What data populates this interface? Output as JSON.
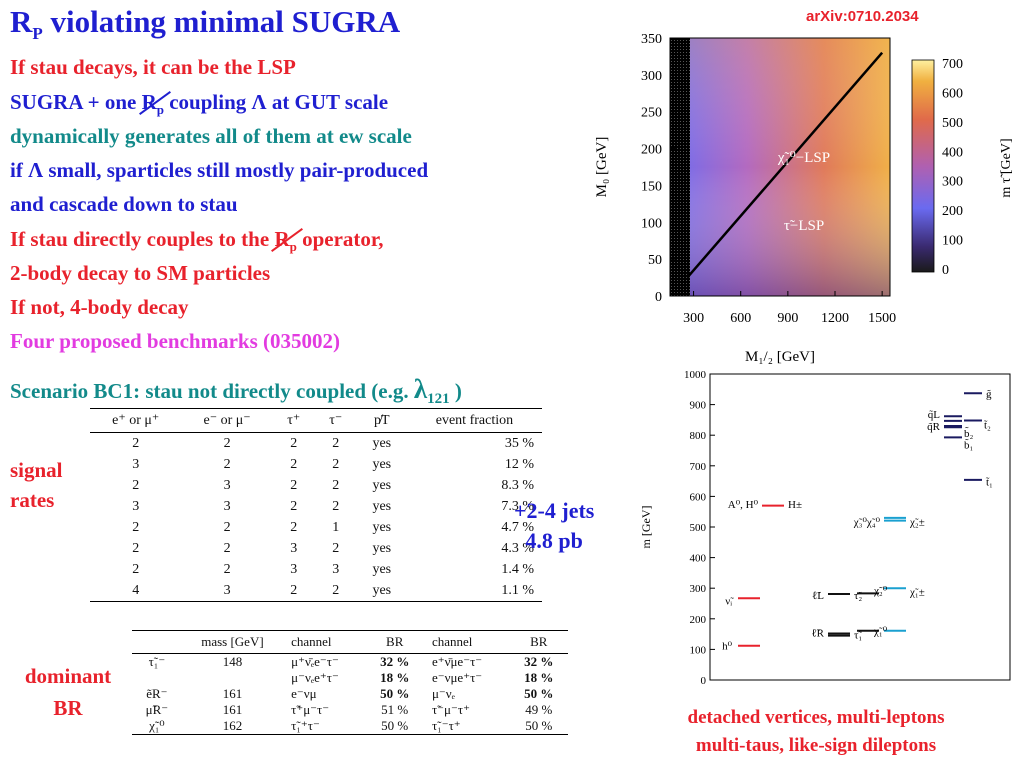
{
  "slide": {
    "title_main": "R",
    "title_sub": "P",
    "title_rest": " violating minimal SUGRA",
    "source": "arXiv:0710.2034",
    "bullets": {
      "l1": "If stau decays, it can be the LSP",
      "l2a": "SUGRA + one ",
      "l2b": "R",
      "l2c": "p",
      "l2d": " coupling Λ at GUT scale",
      "l3": "dynamically generates all of them at ew scale",
      "l4": "if Λ small, sparticles still mostly pair-produced",
      "l5": "and cascade down to stau",
      "l6a": "If stau directly couples to the ",
      "l6b": "R",
      "l6c": "p",
      "l6d": " operator,",
      "l7": "2-body decay to SM particles",
      "l8": "If not, 4-body decay",
      "l9": "Four proposed benchmarks (035002)"
    },
    "scenario": "Scenario BC1: stau not directly coupled (e.g. ",
    "scenario_lambda": "λ",
    "scenario_sub": "121",
    "scenario_end": " )",
    "side_signal": [
      "signal",
      "rates"
    ],
    "side_dominant": [
      "dominant",
      "BR"
    ],
    "jets": [
      "+2-4 jets",
      "4.8 pb"
    ],
    "caption": [
      "detached vertices, multi-leptons",
      "multi-taus, like-sign dileptons"
    ]
  },
  "signal_table": {
    "headers": [
      "e⁺ or μ⁺",
      "e⁻ or μ⁻",
      "τ⁺",
      "τ⁻",
      "p̸T",
      "event fraction"
    ],
    "rows": [
      [
        "2",
        "2",
        "2",
        "2",
        "yes",
        "35 %"
      ],
      [
        "3",
        "2",
        "2",
        "2",
        "yes",
        "12 %"
      ],
      [
        "2",
        "3",
        "2",
        "2",
        "yes",
        "8.3 %"
      ],
      [
        "3",
        "3",
        "2",
        "2",
        "yes",
        "7.3 %"
      ],
      [
        "2",
        "2",
        "2",
        "1",
        "yes",
        "4.7 %"
      ],
      [
        "2",
        "2",
        "3",
        "2",
        "yes",
        "4.3 %"
      ],
      [
        "2",
        "2",
        "3",
        "3",
        "yes",
        "1.4 %"
      ],
      [
        "4",
        "3",
        "2",
        "2",
        "yes",
        "1.1 %"
      ]
    ]
  },
  "br_table": {
    "headers": [
      "",
      "mass [GeV]",
      "channel",
      "BR",
      "channel",
      "BR"
    ],
    "rows": [
      [
        "τ̃₁⁻",
        "148",
        "μ⁺ν̄ₑe⁻τ⁻",
        "32 %",
        "e⁺ν̄μe⁻τ⁻",
        "32 %"
      ],
      [
        "",
        "",
        "μ⁻νₑe⁺τ⁻",
        "18 %",
        "e⁻νμe⁺τ⁻",
        "18 %"
      ],
      [
        "ẽR⁻",
        "161",
        "e⁻νμ",
        "50 %",
        "μ⁻νₑ",
        "50 %"
      ],
      [
        "μ̃R⁻",
        "161",
        "τ̃⁺μ⁻τ⁻",
        "51 %",
        "τ̃⁻μ⁻τ⁺",
        "49 %"
      ],
      [
        "χ̃₁⁰",
        "162",
        "τ̃₁⁺τ⁻",
        "50 %",
        "τ̃₁⁻τ⁺",
        "50 %"
      ]
    ],
    "bold_br": [
      "32 %",
      "18 %",
      "50 %"
    ]
  },
  "heatmap": {
    "ylabel": "M₀ [GeV]",
    "xlabel": "M₁/₂ [GeV]",
    "y_ticks": [
      "350",
      "300",
      "250",
      "200",
      "150",
      "100",
      "50",
      "0"
    ],
    "x_ticks": [
      "300",
      "600",
      "900",
      "1200",
      "1500"
    ],
    "colorbar_label": "m τ̃ [GeV]",
    "colorbar_ticks": [
      "700",
      "600",
      "500",
      "400",
      "300",
      "200",
      "100",
      "0"
    ],
    "region_top": "χ̃₁⁰−LSP",
    "region_bottom": "τ̃−LSP"
  },
  "chart_data": {
    "type": "heatmap",
    "title": "",
    "xlabel": "M_{1/2} [GeV]",
    "ylabel": "M_0 [GeV]",
    "xlim": [
      150,
      1550
    ],
    "ylim": [
      0,
      350
    ],
    "colorbar": {
      "label": "m_τ̃ [GeV]",
      "range": [
        0,
        700
      ]
    },
    "boundary_line": {
      "x": [
        260,
        1500
      ],
      "y": [
        25,
        330
      ]
    },
    "regions": [
      "χ̃₁⁰−LSP",
      "τ̃−LSP"
    ]
  },
  "spectrum": {
    "ylabel": "m [GeV]",
    "y_ticks": [
      "1000",
      "900",
      "800",
      "700",
      "600",
      "500",
      "400",
      "300",
      "200",
      "100",
      "0"
    ],
    "labels": {
      "gluino": "g̃",
      "qL": "q̃L",
      "qR": "q̃R",
      "t2": "t̃₂",
      "b2": "b̃₂",
      "b1": "b̃₁",
      "t1": "t̃₁",
      "A0H0": "A⁰, H⁰",
      "Hpm": "H±",
      "chi34": "χ̃₃⁰χ̃₄⁰",
      "chi2pm": "χ̃₂±",
      "nu": "ν̃ᵢ",
      "lL": "ℓ̃L",
      "tau2": "τ̃₂",
      "chi20": "χ̃₂⁰",
      "chi1pm": "χ̃₁±",
      "lR": "ℓ̃R",
      "tau1": "τ̃₁",
      "chi10": "χ̃₁⁰",
      "h0": "h⁰"
    }
  },
  "colors": {
    "title": "#1f1fd0",
    "red": "#e8222c",
    "teal": "#128a8a",
    "magenta": "#e23be0"
  }
}
